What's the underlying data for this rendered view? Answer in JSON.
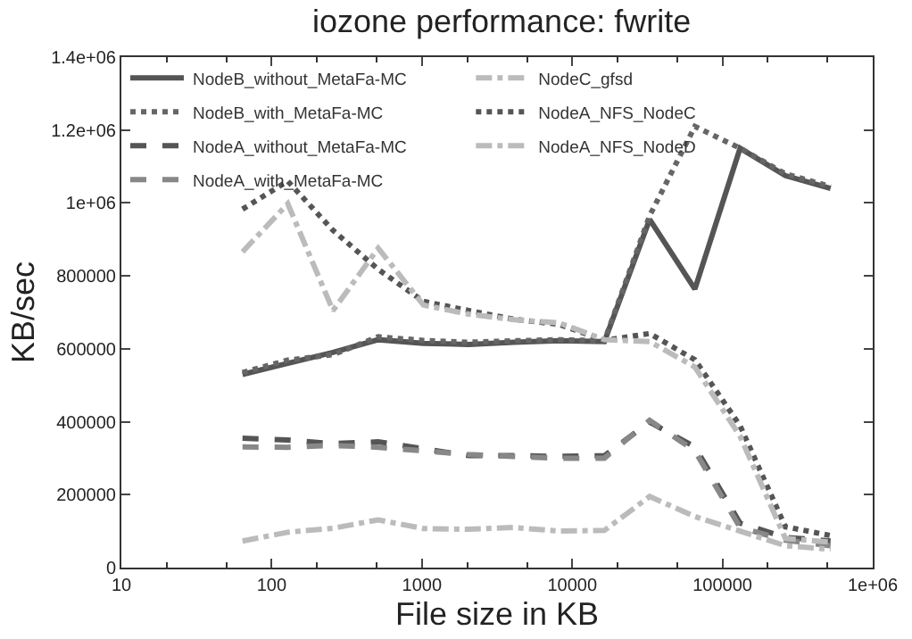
{
  "chart_data": {
    "type": "line",
    "title": "iozone performance: fwrite",
    "xlabel": "File size in KB",
    "ylabel": "KB/sec",
    "x": [
      64,
      128,
      256,
      512,
      1024,
      2048,
      4096,
      8192,
      16384,
      32768,
      65536,
      131072,
      262144,
      524288
    ],
    "log": "x",
    "xlim": [
      10,
      1000000
    ],
    "xticks": [
      10,
      100,
      1000,
      10000,
      100000,
      {
        "value": 1000000,
        "label": "1e+06"
      }
    ],
    "ylim": [
      0,
      1400000
    ],
    "yticks": [
      0,
      200000,
      400000,
      600000,
      800000,
      {
        "value": 1000000,
        "label": "1e+06"
      },
      {
        "value": 1200000,
        "label": "1.2e+06"
      },
      {
        "value": 1400000,
        "label": "1.4e+06"
      }
    ],
    "grid": false,
    "legend": "top left",
    "marker": "none",
    "series": [
      {
        "name": "NodeB_without_MetaFa-MC",
        "color": "#555555",
        "line_style": "solid",
        "values": [
          530000,
          560000,
          590000,
          625000,
          615000,
          612000,
          618000,
          622000,
          620000,
          955000,
          764000,
          1150000,
          1075000,
          1040000
        ]
      },
      {
        "name": "NodeB_with_MetaFa-MC",
        "color": "#666666",
        "line_style": "dotted",
        "values": [
          535000,
          569000,
          584000,
          633000,
          623000,
          618000,
          622000,
          625000,
          622000,
          965000,
          1210000,
          1150000,
          1080000,
          1045000
        ]
      },
      {
        "name": "NodeA_without_MetaFa-MC",
        "color": "#555555",
        "line_style": "dashed",
        "values": [
          355000,
          350000,
          340000,
          345000,
          326000,
          307000,
          307000,
          305000,
          307000,
          399000,
          331000,
          122000,
          83000,
          73000
        ]
      },
      {
        "name": "NodeA_with_MetaFa-MC",
        "color": "#888888",
        "line_style": "dashed",
        "values": [
          331000,
          330000,
          335000,
          330000,
          320000,
          310000,
          305000,
          300000,
          300000,
          404000,
          320000,
          110000,
          75000,
          60000
        ]
      },
      {
        "name": "NodeC_gfsd",
        "color": "#bbbbbb",
        "line_style": "dashdot",
        "values": [
          73000,
          97000,
          108000,
          131000,
          107000,
          105000,
          110000,
          100000,
          102000,
          195000,
          140000,
          100000,
          60000,
          50000
        ]
      },
      {
        "name": "NodeA_NFS_NodeC",
        "color": "#555555",
        "line_style": "dotted",
        "values": [
          983000,
          1060000,
          925000,
          818000,
          730000,
          705000,
          681000,
          667000,
          623000,
          642000,
          570000,
          389000,
          112000,
          88000
        ]
      },
      {
        "name": "NodeA_NFS_NodeD",
        "color": "#bbbbbb",
        "line_style": "dashdot",
        "values": [
          866000,
          998000,
          705000,
          876000,
          720000,
          695000,
          680000,
          671000,
          625000,
          620000,
          550000,
          360000,
          80000,
          70000
        ]
      }
    ]
  }
}
